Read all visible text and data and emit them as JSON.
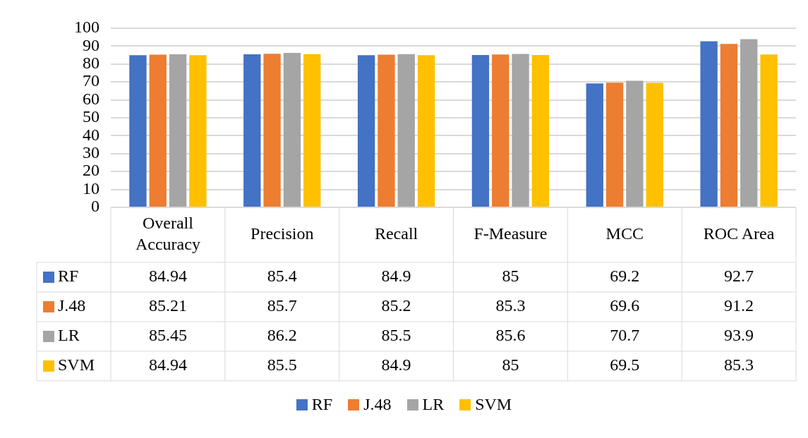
{
  "chart_data": {
    "type": "bar",
    "categories": [
      "Overall Accuracy",
      "Precision",
      "Recall",
      "F-Measure",
      "MCC",
      "ROC Area"
    ],
    "series": [
      {
        "name": "RF",
        "color": "#4472c4",
        "values": [
          84.94,
          85.4,
          84.9,
          85,
          69.2,
          92.7
        ]
      },
      {
        "name": "J.48",
        "color": "#ed7d31",
        "values": [
          85.21,
          85.7,
          85.2,
          85.3,
          69.6,
          91.2
        ]
      },
      {
        "name": "LR",
        "color": "#a5a5a5",
        "values": [
          85.45,
          86.2,
          85.5,
          85.6,
          70.7,
          93.9
        ]
      },
      {
        "name": "SVM",
        "color": "#ffc000",
        "values": [
          84.94,
          85.5,
          84.9,
          85,
          69.5,
          85.3
        ]
      }
    ],
    "ylim": [
      0,
      100
    ],
    "yticks": [
      0,
      10,
      20,
      30,
      40,
      50,
      60,
      70,
      80,
      90,
      100
    ],
    "grid": "y",
    "legend": "bottom",
    "data_labels": true
  }
}
